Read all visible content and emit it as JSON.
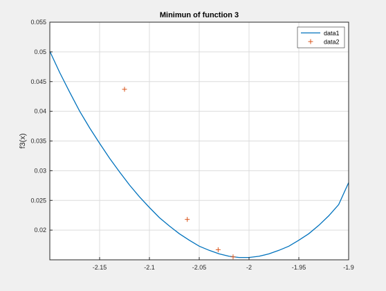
{
  "chart_data": {
    "type": "line",
    "title": "Minimun of function 3",
    "xlabel": "",
    "ylabel": "f3(x)",
    "xlim": [
      -2.2,
      -1.9
    ],
    "ylim": [
      0.015,
      0.055
    ],
    "grid": true,
    "legend_position": "top-right",
    "x_ticks": [
      -2.15,
      -2.1,
      -2.05,
      -2,
      -1.95,
      -1.9
    ],
    "x_tick_labels": [
      "-2.15",
      "-2.1",
      "-2.05",
      "-2",
      "-1.95",
      "-1.9"
    ],
    "y_ticks": [
      0.02,
      0.025,
      0.03,
      0.035,
      0.04,
      0.045,
      0.05,
      0.055
    ],
    "y_tick_labels": [
      "0.02",
      "0.025",
      "0.03",
      "0.035",
      "0.04",
      "0.045",
      "0.05",
      "0.055"
    ],
    "series": [
      {
        "name": "data1",
        "kind": "line",
        "color": "#0072bd",
        "x": [
          -2.2,
          -2.19,
          -2.18,
          -2.17,
          -2.16,
          -2.15,
          -2.14,
          -2.13,
          -2.12,
          -2.11,
          -2.1,
          -2.09,
          -2.08,
          -2.07,
          -2.06,
          -2.05,
          -2.04,
          -2.03,
          -2.02,
          -2.01,
          -2.0,
          -1.99,
          -1.98,
          -1.97,
          -1.96,
          -1.95,
          -1.94,
          -1.93,
          -1.92,
          -1.91,
          -1.9
        ],
        "y": [
          0.0501,
          0.0465,
          0.0432,
          0.04,
          0.0372,
          0.0346,
          0.0321,
          0.0298,
          0.0276,
          0.0256,
          0.0238,
          0.0221,
          0.0207,
          0.0194,
          0.0183,
          0.0173,
          0.0166,
          0.016,
          0.0156,
          0.0154,
          0.0154,
          0.0156,
          0.016,
          0.0166,
          0.0173,
          0.0183,
          0.0194,
          0.0208,
          0.0224,
          0.0243,
          0.028
        ]
      },
      {
        "name": "data2",
        "kind": "scatter",
        "marker": "+",
        "color": "#d95319",
        "x": [
          -2.125,
          -2.062,
          -2.031,
          -2.016
        ],
        "y": [
          0.0437,
          0.0218,
          0.0167,
          0.0155
        ]
      }
    ]
  }
}
